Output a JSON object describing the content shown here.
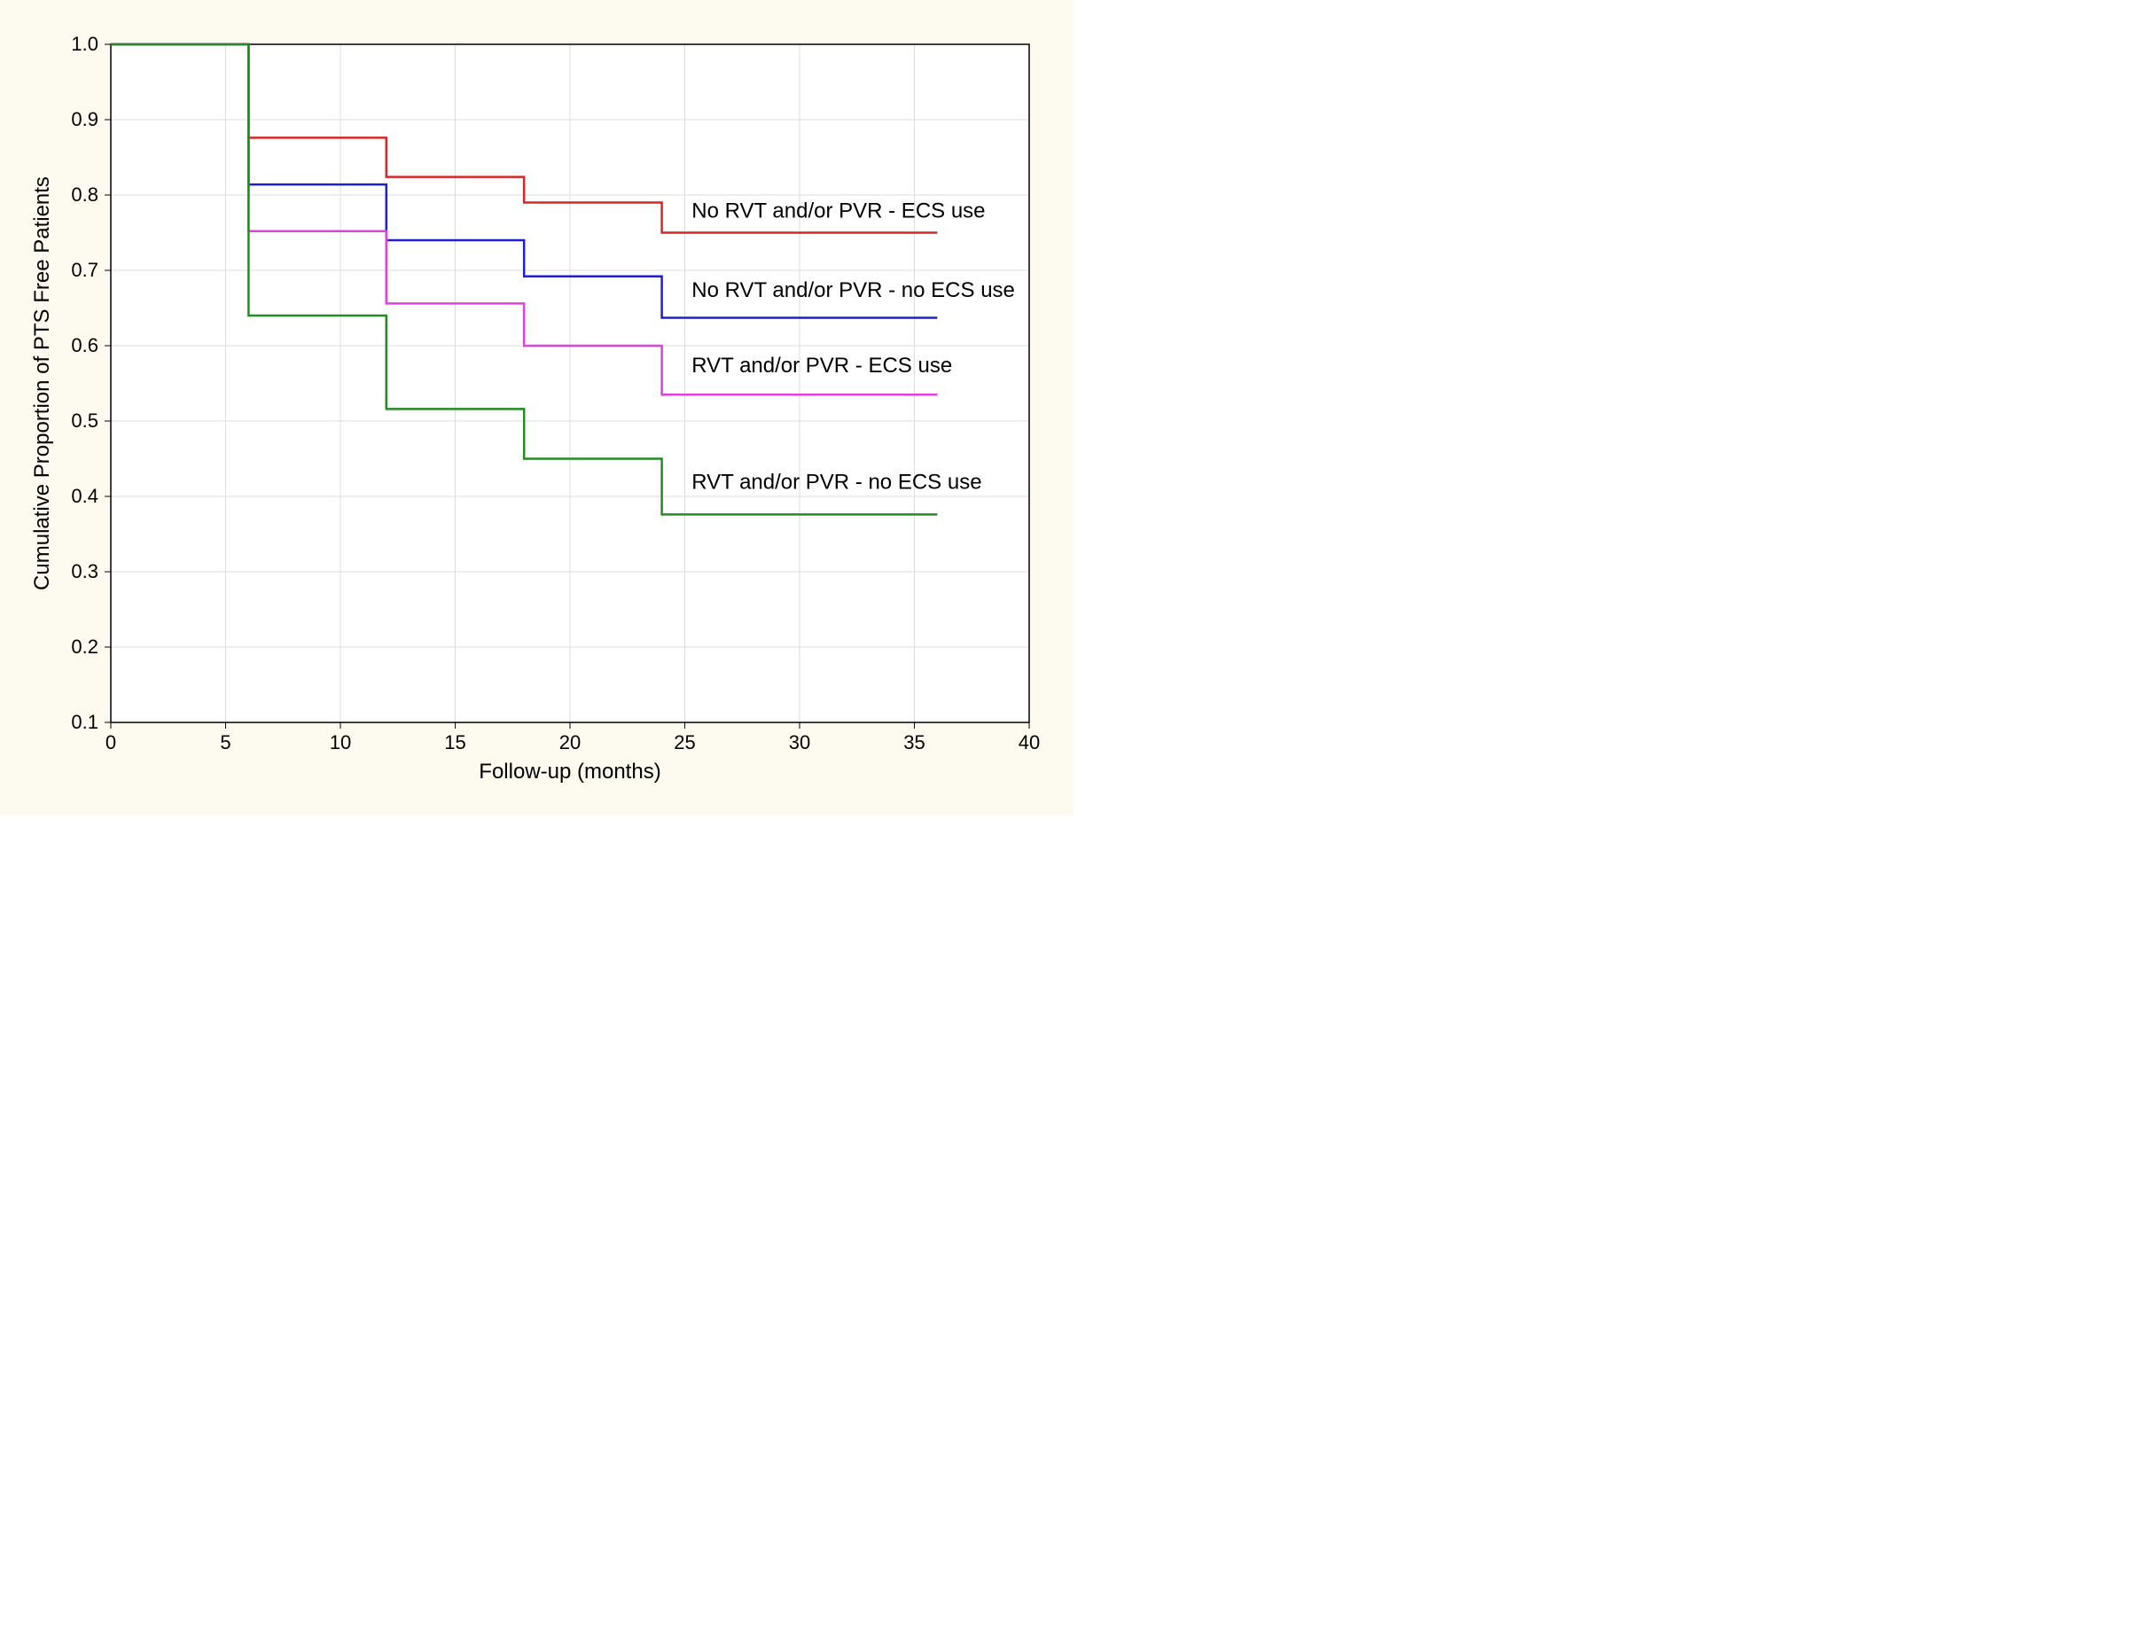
{
  "chart": {
    "type": "kaplan-meier-survival",
    "background_color": "#fdfaef",
    "plot_background_color": "#ffffff",
    "grid_color": "#dddddd",
    "axis_color": "#000000",
    "xlabel": "Follow-up (months)",
    "ylabel": "Cumulative Proportion of PTS Free Patients",
    "label_fontsize": 24,
    "tick_fontsize": 22,
    "series_label_fontsize": 24,
    "xlim": [
      0,
      40
    ],
    "ylim": [
      0.1,
      1.0
    ],
    "xticks": [
      0,
      5,
      10,
      15,
      20,
      25,
      30,
      35,
      40
    ],
    "yticks": [
      0.1,
      0.2,
      0.3,
      0.4,
      0.5,
      0.6,
      0.7,
      0.8,
      0.9,
      1.0
    ],
    "line_width": 2.5,
    "series": [
      {
        "label": "No RVT and/or PVR - ECS use",
        "color": "#d62728",
        "steps": [
          [
            0,
            1.0
          ],
          [
            6,
            1.0
          ],
          [
            6,
            0.876
          ],
          [
            12,
            0.876
          ],
          [
            12,
            0.824
          ],
          [
            18,
            0.824
          ],
          [
            18,
            0.79
          ],
          [
            24,
            0.79
          ],
          [
            24,
            0.75
          ],
          [
            36,
            0.75
          ]
        ],
        "label_x": 25.3,
        "label_y": 0.77
      },
      {
        "label": "No RVT and/or PVR - no ECS use",
        "color": "#1f1fd6",
        "steps": [
          [
            0,
            1.0
          ],
          [
            6,
            1.0
          ],
          [
            6,
            0.814
          ],
          [
            12,
            0.814
          ],
          [
            12,
            0.74
          ],
          [
            18,
            0.74
          ],
          [
            18,
            0.692
          ],
          [
            24,
            0.692
          ],
          [
            24,
            0.637
          ],
          [
            36,
            0.637
          ]
        ],
        "label_x": 25.3,
        "label_y": 0.665
      },
      {
        "label": "RVT and/or PVR - ECS use",
        "color": "#e040e0",
        "steps": [
          [
            0,
            1.0
          ],
          [
            6,
            1.0
          ],
          [
            6,
            0.752
          ],
          [
            12,
            0.752
          ],
          [
            12,
            0.656
          ],
          [
            18,
            0.656
          ],
          [
            18,
            0.6
          ],
          [
            24,
            0.6
          ],
          [
            24,
            0.535
          ],
          [
            36,
            0.535
          ]
        ],
        "label_x": 25.3,
        "label_y": 0.565
      },
      {
        "label": "RVT and/or PVR - no ECS use",
        "color": "#228b22",
        "steps": [
          [
            0,
            1.0
          ],
          [
            6,
            1.0
          ],
          [
            6,
            0.64
          ],
          [
            12,
            0.64
          ],
          [
            12,
            0.516
          ],
          [
            18,
            0.516
          ],
          [
            18,
            0.45
          ],
          [
            24,
            0.45
          ],
          [
            24,
            0.376
          ],
          [
            36,
            0.376
          ]
        ],
        "label_x": 25.3,
        "label_y": 0.41
      }
    ]
  }
}
